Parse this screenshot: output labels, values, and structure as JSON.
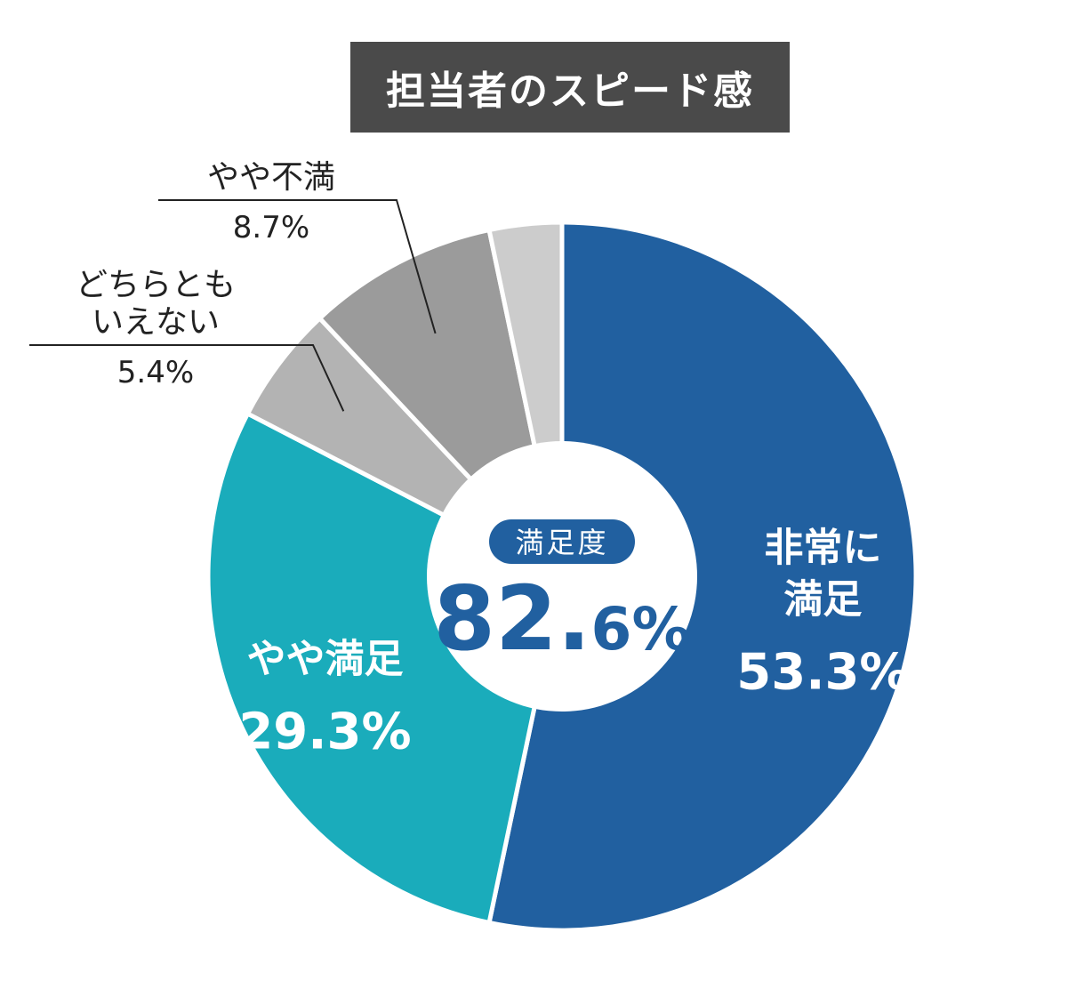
{
  "title": "担当者のスピード感",
  "center": {
    "badge_label": "満足度",
    "value_main": "82.",
    "value_decimal": "6",
    "value_unit": "%"
  },
  "chart_data": {
    "type": "pie",
    "donut": true,
    "start_angle": "top, clockwise",
    "slices": [
      {
        "label_lines": [
          "非常に",
          "満足"
        ],
        "value": 53.3,
        "value_text": "53.3%",
        "color": "#2160a0",
        "label_position": "inside"
      },
      {
        "label_lines": [
          "やや満足"
        ],
        "value": 29.3,
        "value_text": "29.3%",
        "color": "#1aacbb",
        "label_position": "inside"
      },
      {
        "label_lines": [
          "どちらとも",
          "いえない"
        ],
        "value": 5.4,
        "value_text": "5.4%",
        "color": "#b3b3b3",
        "label_position": "outside-left"
      },
      {
        "label_lines": [
          "やや不満"
        ],
        "value": 8.7,
        "value_text": "8.7%",
        "color": "#9b9b9b",
        "label_position": "outside-top"
      },
      {
        "label_lines": [],
        "value": 3.3,
        "value_text": "",
        "color": "#cccccc",
        "label_position": "none"
      }
    ]
  },
  "colors": {
    "center_text": "#2160a0",
    "badge_bg": "#2160a0",
    "inside_label": "#ffffff",
    "outside_label": "#222222"
  }
}
